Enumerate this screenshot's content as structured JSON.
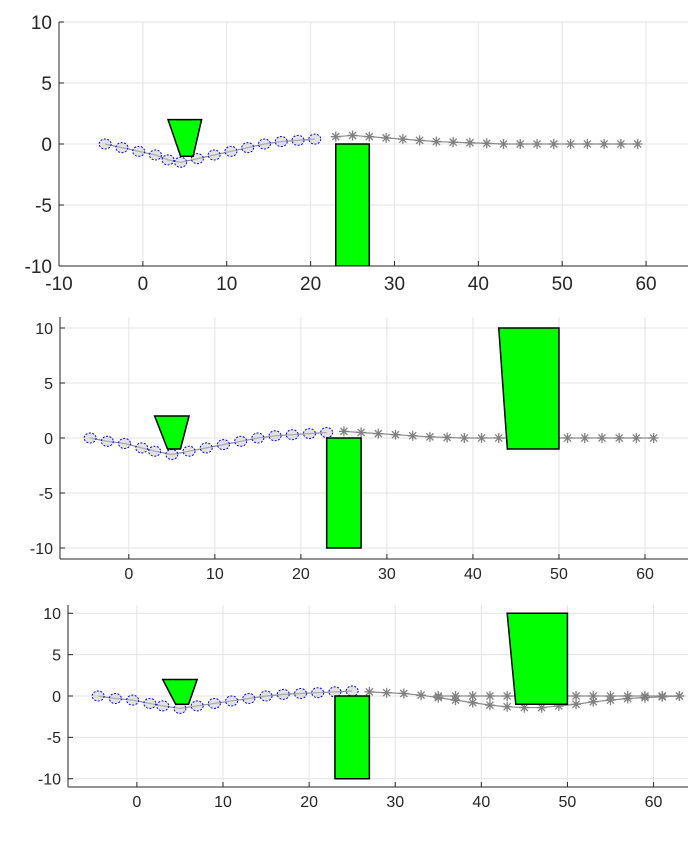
{
  "chart_data": [
    {
      "type": "scatter",
      "title": "",
      "xlabel": "",
      "ylabel": "",
      "xlim": [
        -10,
        65
      ],
      "ylim": [
        -10,
        10
      ],
      "grid": true,
      "xticks": [
        -10,
        0,
        10,
        20,
        30,
        40,
        50,
        60
      ],
      "yticks": [
        -10,
        -5,
        0,
        5,
        10
      ],
      "series": [
        {
          "marker": "circle",
          "color": "#0000ff",
          "x": [
            -4.5,
            -2.5,
            -0.5,
            1.5,
            3,
            4.5,
            6.5,
            8.5,
            10.5,
            12.5,
            14.5,
            16.5,
            18.5,
            20.5
          ],
          "y": [
            0,
            -0.3,
            -0.6,
            -0.9,
            -1.3,
            -1.5,
            -1.2,
            -0.9,
            -0.6,
            -0.3,
            0,
            0.2,
            0.3,
            0.4
          ]
        },
        {
          "marker": "star",
          "color": "#808080",
          "x": [
            23,
            25,
            27,
            29,
            31,
            33,
            35,
            37,
            39,
            41,
            43,
            45,
            47,
            49,
            51,
            53,
            55,
            57,
            59
          ],
          "y": [
            0.6,
            0.7,
            0.6,
            0.5,
            0.4,
            0.3,
            0.2,
            0.15,
            0.1,
            0.05,
            0,
            0,
            0,
            0,
            0,
            0,
            0,
            0,
            0
          ]
        }
      ],
      "obstacles": [
        {
          "corners": [
            [
              3,
              2
            ],
            [
              7,
              2
            ],
            [
              6,
              -1
            ],
            [
              4.5,
              -1
            ]
          ],
          "color": "#00ff00"
        },
        {
          "corners": [
            [
              23,
              0
            ],
            [
              27,
              0
            ],
            [
              27,
              -10
            ],
            [
              23,
              -10
            ]
          ],
          "color": "#00ff00"
        }
      ]
    },
    {
      "type": "scatter",
      "title": "",
      "xlabel": "",
      "ylabel": "",
      "xlim": [
        -8,
        65
      ],
      "ylim": [
        -11,
        11
      ],
      "grid": true,
      "xticks": [
        0,
        10,
        20,
        30,
        40,
        50,
        60
      ],
      "yticks": [
        -10,
        -5,
        0,
        5,
        10
      ],
      "series": [
        {
          "marker": "circle",
          "color": "#0000ff",
          "x": [
            -4.5,
            -2.5,
            -0.5,
            1.5,
            3,
            5,
            7,
            9,
            11,
            13,
            15,
            17,
            19,
            21,
            23
          ],
          "y": [
            0,
            -0.3,
            -0.5,
            -0.9,
            -1.2,
            -1.5,
            -1.2,
            -0.9,
            -0.6,
            -0.3,
            0,
            0.2,
            0.3,
            0.4,
            0.5
          ]
        },
        {
          "marker": "star",
          "color": "#808080",
          "x": [
            25,
            27,
            29,
            31,
            33,
            35,
            37,
            39,
            41,
            43,
            45,
            47,
            49,
            51,
            53,
            55,
            57,
            59,
            61
          ],
          "y": [
            0.6,
            0.5,
            0.4,
            0.3,
            0.2,
            0.1,
            0.05,
            0,
            0,
            0,
            0,
            0,
            0,
            0,
            0,
            0,
            0,
            0,
            0
          ]
        }
      ],
      "obstacles": [
        {
          "corners": [
            [
              3,
              2
            ],
            [
              7,
              2
            ],
            [
              6,
              -1
            ],
            [
              4.5,
              -1
            ]
          ],
          "color": "#00ff00"
        },
        {
          "corners": [
            [
              23,
              0
            ],
            [
              27,
              0
            ],
            [
              27,
              -10
            ],
            [
              23,
              -10
            ]
          ],
          "color": "#00ff00"
        },
        {
          "corners": [
            [
              43,
              10
            ],
            [
              50,
              10
            ],
            [
              50,
              -1
            ],
            [
              44,
              -1
            ]
          ],
          "color": "#00ff00"
        }
      ]
    },
    {
      "type": "scatter",
      "title": "",
      "xlabel": "",
      "ylabel": "",
      "xlim": [
        -8,
        64
      ],
      "ylim": [
        -11,
        11
      ],
      "grid": true,
      "xticks": [
        0,
        10,
        20,
        30,
        40,
        50,
        60
      ],
      "yticks": [
        -10,
        -5,
        0,
        5,
        10
      ],
      "series": [
        {
          "marker": "circle",
          "color": "#0000ff",
          "x": [
            -4.5,
            -2.5,
            -0.5,
            1.5,
            3,
            5,
            7,
            9,
            11,
            13,
            15,
            17,
            19,
            21,
            23,
            25
          ],
          "y": [
            0,
            -0.3,
            -0.5,
            -0.9,
            -1.2,
            -1.5,
            -1.2,
            -0.9,
            -0.6,
            -0.3,
            0,
            0.2,
            0.3,
            0.4,
            0.5,
            0.6
          ]
        },
        {
          "marker": "star",
          "color": "#808080",
          "x": [
            27,
            29,
            31,
            33,
            35,
            37,
            39,
            41,
            43,
            45,
            47,
            49,
            51,
            53,
            55,
            57,
            59,
            61,
            63
          ],
          "y": [
            0.5,
            0.4,
            0.3,
            0.1,
            -0.2,
            -0.5,
            -0.8,
            -1.1,
            -1.3,
            -1.4,
            -1.4,
            -1.2,
            -1,
            -0.7,
            -0.5,
            -0.3,
            -0.2,
            -0.1,
            0
          ]
        },
        {
          "marker": "star",
          "color": "#808080",
          "x": [
            35,
            37,
            39,
            41,
            43,
            45,
            47,
            49,
            51,
            53,
            55,
            57,
            59,
            61,
            63
          ],
          "y": [
            0,
            0,
            0,
            0,
            0,
            0,
            0,
            0,
            0,
            0,
            0,
            0,
            0,
            0,
            0
          ]
        }
      ],
      "obstacles": [
        {
          "corners": [
            [
              3,
              2
            ],
            [
              7,
              2
            ],
            [
              6,
              -1
            ],
            [
              4.5,
              -1
            ]
          ],
          "color": "#00ff00"
        },
        {
          "corners": [
            [
              23,
              0
            ],
            [
              27,
              0
            ],
            [
              27,
              -10
            ],
            [
              23,
              -10
            ]
          ],
          "color": "#00ff00"
        },
        {
          "corners": [
            [
              43,
              10
            ],
            [
              50,
              10
            ],
            [
              50,
              -1
            ],
            [
              44,
              -1
            ]
          ],
          "color": "#00ff00"
        }
      ]
    }
  ]
}
